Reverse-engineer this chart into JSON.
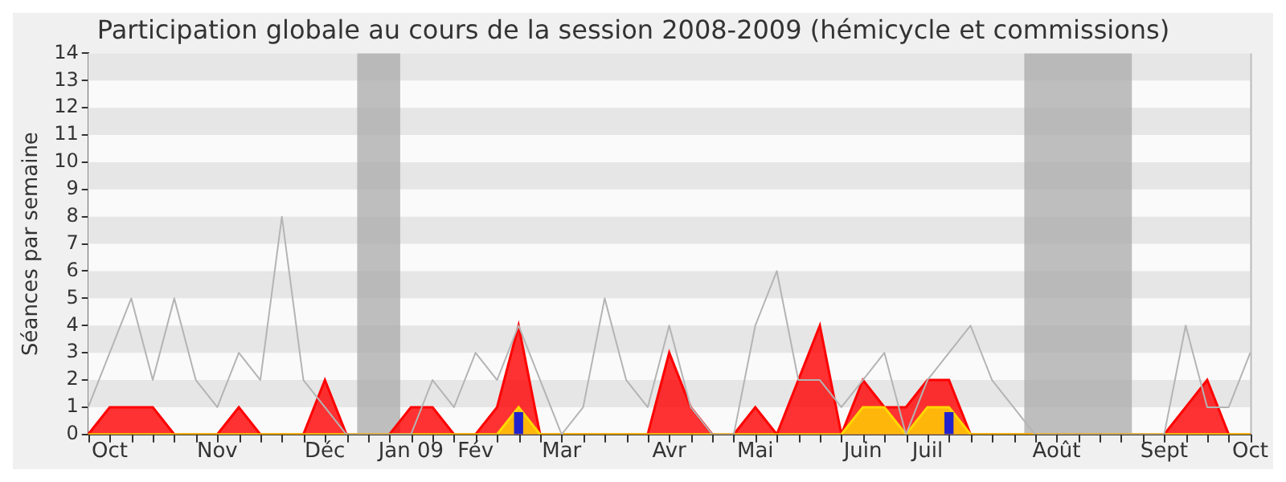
{
  "chart_data": {
    "type": "area",
    "title": "Participation globale au cours de la session 2008-2009 (hémicycle et commissions)",
    "ylabel": "Séances par semaine",
    "categories": [
      null,
      "Oct",
      null,
      null,
      null,
      null,
      "Nov",
      null,
      null,
      null,
      null,
      "Déc",
      null,
      null,
      null,
      "Jan 09",
      null,
      null,
      "Fév",
      null,
      null,
      null,
      "Mar",
      null,
      null,
      null,
      null,
      "Avr",
      null,
      null,
      null,
      "Mai",
      null,
      null,
      null,
      null,
      "Juin",
      null,
      null,
      "Juil",
      null,
      null,
      null,
      null,
      null,
      "Août",
      null,
      null,
      null,
      null,
      "Sept",
      null,
      null,
      null,
      "Oct"
    ],
    "series": [
      {
        "type": "line",
        "color": "#b4b4b4",
        "values": [
          1,
          3,
          5,
          2,
          5,
          2,
          1,
          3,
          2,
          8,
          2,
          1,
          0,
          0,
          0,
          0,
          2,
          1,
          3,
          2,
          4,
          2,
          0,
          1,
          5,
          2,
          1,
          4,
          1,
          0,
          0,
          4,
          6,
          2,
          2,
          1,
          2,
          3,
          0,
          2,
          3,
          4,
          2,
          1,
          0,
          0,
          0,
          0,
          0,
          0,
          0,
          4,
          1,
          1,
          3
        ]
      },
      {
        "color": "#ff0000",
        "values": [
          0,
          1,
          1,
          1,
          0,
          0,
          0,
          1,
          0,
          0,
          0,
          2,
          0,
          0,
          0,
          1,
          1,
          0,
          0,
          1,
          4,
          0,
          0,
          0,
          0,
          0,
          0,
          3,
          1,
          0,
          0,
          1,
          0,
          2,
          4,
          0,
          2,
          1,
          1,
          2,
          2,
          0,
          0,
          0,
          0,
          0,
          0,
          0,
          0,
          0,
          0,
          1,
          2,
          0,
          0
        ]
      },
      {
        "type": "area",
        "color": "#ffd700",
        "values": [
          0,
          0,
          0,
          0,
          0,
          0,
          0,
          0,
          0,
          0,
          0,
          0,
          0,
          0,
          0,
          0,
          0,
          0,
          0,
          0,
          1,
          0,
          0,
          0,
          0,
          0,
          0,
          0,
          0,
          0,
          0,
          0,
          0,
          0,
          0,
          0,
          1,
          1,
          0,
          1,
          1,
          0,
          0,
          0,
          0,
          0,
          0,
          0,
          0,
          0,
          0,
          0,
          0,
          0,
          0
        ]
      },
      {
        "type": "bar",
        "color": "#2222cc",
        "values": [
          null,
          null,
          null,
          null,
          null,
          null,
          null,
          null,
          null,
          null,
          null,
          null,
          null,
          null,
          null,
          null,
          null,
          null,
          null,
          null,
          0.8,
          null,
          null,
          null,
          null,
          null,
          null,
          null,
          null,
          null,
          null,
          null,
          null,
          null,
          null,
          null,
          null,
          null,
          null,
          null,
          0.8,
          null,
          null,
          null,
          null,
          null,
          null,
          null,
          null,
          null,
          null,
          null,
          null,
          null,
          null
        ]
      }
    ],
    "ylim": [
      0,
      14
    ],
    "yticks": [
      0,
      1,
      2,
      3,
      4,
      5,
      6,
      7,
      8,
      9,
      10,
      11,
      12,
      13,
      14
    ],
    "legend": false
  }
}
